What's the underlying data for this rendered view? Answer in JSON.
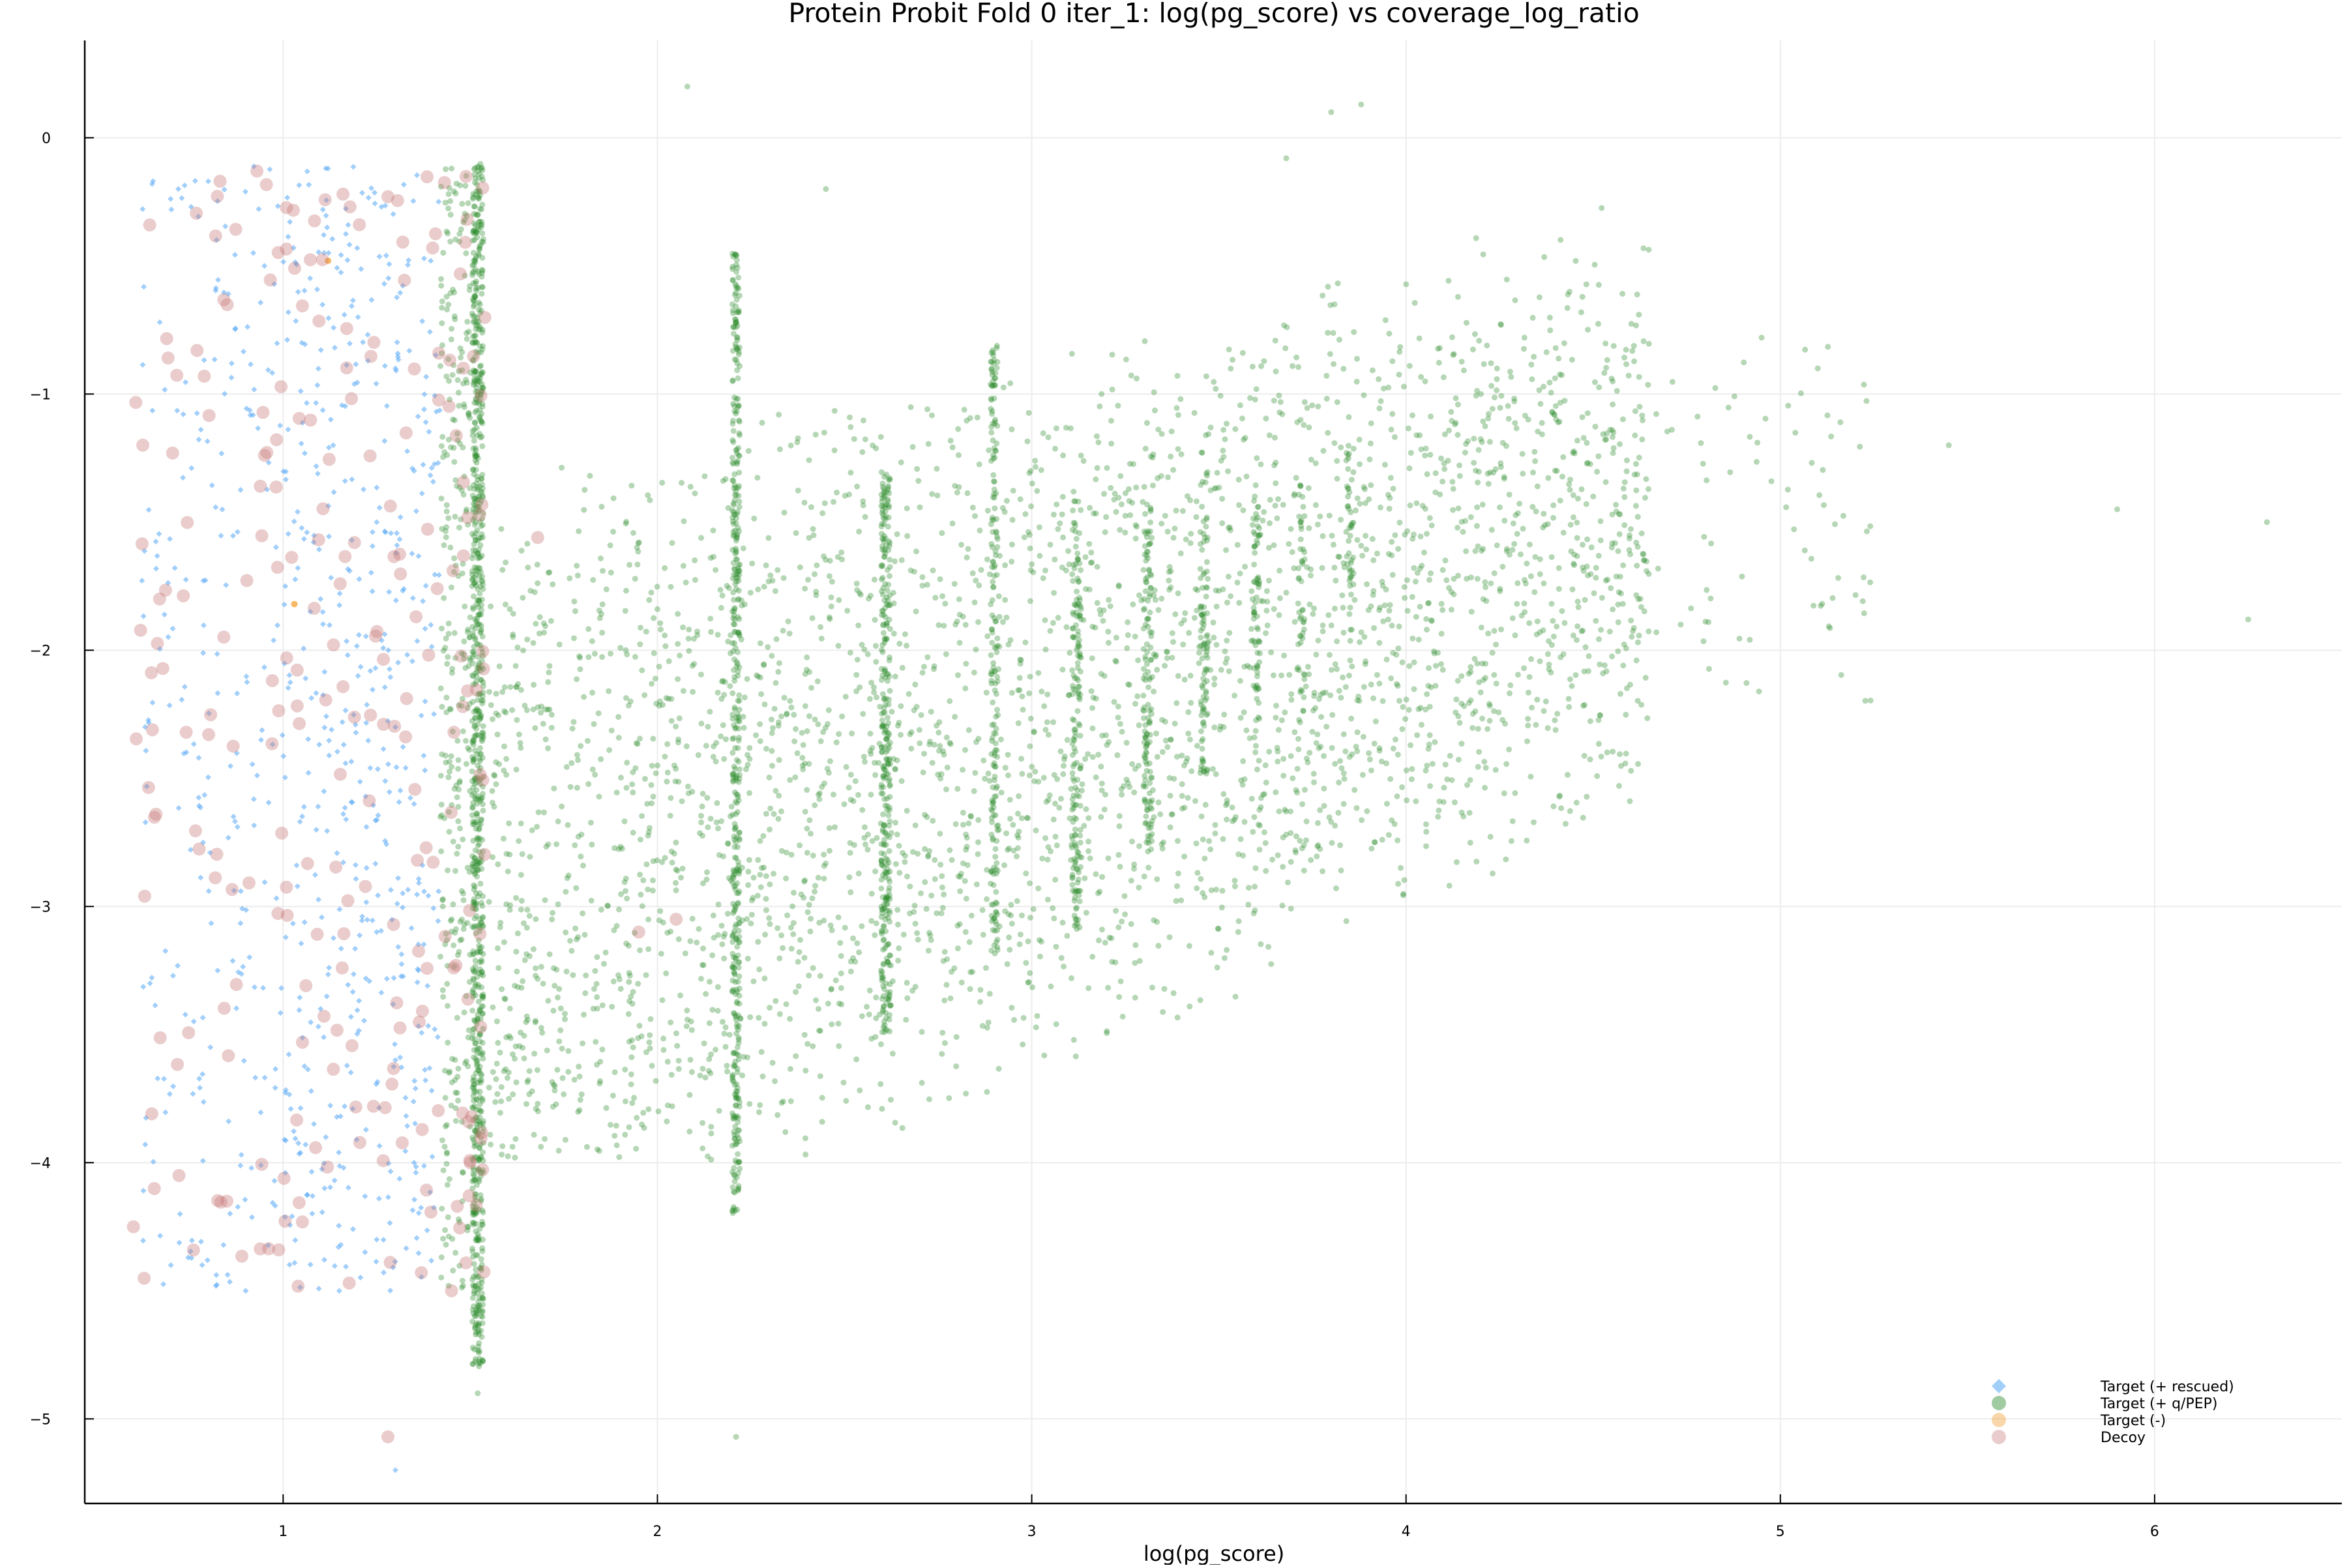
{
  "chart_data": {
    "type": "scatter",
    "title": "Protein Probit Fold 0 iter_1: log(pg_score) vs coverage_log_ratio",
    "xlabel": "log(pg_score)",
    "ylabel": "",
    "xlim": [
      0.47,
      6.5
    ],
    "ylim": [
      -5.33,
      0.38
    ],
    "xticks": [
      1,
      2,
      3,
      4,
      5,
      6
    ],
    "yticks": [
      0,
      -1,
      -2,
      -3,
      -4,
      -5
    ],
    "grid": true,
    "legend_position": "bottom-right",
    "colors": {
      "target_rescued": "#56a8f5",
      "target_qpep": "#2e8b2e",
      "target_neg": "#f5a742",
      "decoy": "#c87a7a",
      "axis": "#000000",
      "grid": "#ececec"
    },
    "series": [
      {
        "name": "Target (+ rescued)",
        "marker": "diamond",
        "color": "#56a8f5",
        "sample_points": [
          [
            0.65,
            -0.18
          ],
          [
            0.72,
            -0.2
          ],
          [
            0.8,
            -0.17
          ],
          [
            0.95,
            -0.5
          ],
          [
            1.05,
            -0.8
          ],
          [
            1.12,
            -0.12
          ],
          [
            1.2,
            -0.7
          ],
          [
            1.3,
            -0.9
          ],
          [
            1.35,
            -1.3
          ],
          [
            1.25,
            -1.5
          ],
          [
            1.1,
            -1.8
          ],
          [
            1.2,
            -2.1
          ],
          [
            1.3,
            -2.3
          ],
          [
            1.35,
            -2.6
          ],
          [
            1.25,
            -3.1
          ],
          [
            1.1,
            -3.4
          ],
          [
            1.3,
            -3.6
          ],
          [
            1.35,
            -4.0
          ],
          [
            1.25,
            -4.3
          ],
          [
            1.15,
            -4.5
          ],
          [
            0.7,
            -4.4
          ],
          [
            0.9,
            -4.5
          ],
          [
            1.3,
            -5.2
          ]
        ]
      },
      {
        "name": "Target (+ q/PEP)",
        "marker": "circle",
        "color": "#2e8b2e",
        "sample_points": [
          [
            1.45,
            -0.12
          ],
          [
            1.52,
            -2.5
          ],
          [
            1.52,
            -4.9
          ],
          [
            2.08,
            0.2
          ],
          [
            2.21,
            -2.5
          ],
          [
            2.21,
            -5.07
          ],
          [
            2.45,
            -0.2
          ],
          [
            2.6,
            -2.3
          ],
          [
            2.9,
            -2.4
          ],
          [
            3.12,
            -2.0
          ],
          [
            3.3,
            -1.8
          ],
          [
            3.46,
            -1.9
          ],
          [
            3.68,
            -0.08
          ],
          [
            3.8,
            0.1
          ],
          [
            3.88,
            0.13
          ],
          [
            4.2,
            -1.0
          ],
          [
            4.5,
            -1.4
          ],
          [
            4.95,
            -0.78
          ],
          [
            5.1,
            -0.9
          ],
          [
            5.45,
            -1.2
          ],
          [
            5.9,
            -1.45
          ],
          [
            6.3,
            -1.5
          ],
          [
            6.25,
            -1.88
          ]
        ]
      },
      {
        "name": "Target (-)",
        "marker": "circle",
        "color": "#f5a742",
        "sample_points": [
          [
            1.12,
            -0.48
          ],
          [
            1.03,
            -1.82
          ]
        ]
      },
      {
        "name": "Decoy",
        "marker": "circle",
        "color": "#c87a7a",
        "sample_points": [
          [
            0.93,
            -0.13
          ],
          [
            1.16,
            -0.22
          ],
          [
            1.28,
            -0.23
          ],
          [
            0.77,
            -0.83
          ],
          [
            0.67,
            -1.8
          ],
          [
            0.63,
            -2.96
          ],
          [
            0.6,
            -4.25
          ],
          [
            1.68,
            -1.56
          ],
          [
            1.95,
            -3.1
          ],
          [
            2.05,
            -3.05
          ],
          [
            1.28,
            -5.07
          ],
          [
            1.5,
            -4.0
          ],
          [
            1.45,
            -4.5
          ]
        ]
      }
    ]
  }
}
